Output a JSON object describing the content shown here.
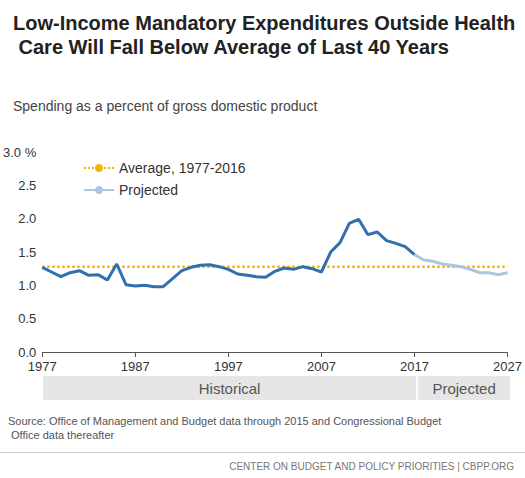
{
  "chart_data": {
    "type": "line",
    "title": "Low-Income Mandatory Expenditures Outside Health Care Will Fall Below Average of Last 40 Years",
    "subtitle": "Spending as a percent of gross domestic product",
    "x": [
      1977,
      1978,
      1979,
      1980,
      1981,
      1982,
      1983,
      1984,
      1985,
      1986,
      1987,
      1988,
      1989,
      1990,
      1991,
      1992,
      1993,
      1994,
      1995,
      1996,
      1997,
      1998,
      1999,
      2000,
      2001,
      2002,
      2003,
      2004,
      2005,
      2006,
      2007,
      2008,
      2009,
      2010,
      2011,
      2012,
      2013,
      2014,
      2015,
      2016,
      2017,
      2018,
      2019,
      2020,
      2021,
      2022,
      2023,
      2024,
      2025,
      2026,
      2027
    ],
    "series": [
      {
        "color": "#2f70ad",
        "line_style": "solid",
        "values": [
          1.27,
          1.2,
          1.13,
          1.19,
          1.22,
          1.15,
          1.16,
          1.08,
          1.32,
          1.01,
          0.99,
          1.0,
          0.98,
          0.98,
          1.1,
          1.22,
          1.27,
          1.3,
          1.31,
          1.28,
          1.24,
          1.17,
          1.15,
          1.13,
          1.12,
          1.21,
          1.26,
          1.24,
          1.28,
          1.25,
          1.2,
          1.5,
          1.64,
          1.93,
          1.99,
          1.76,
          1.8,
          1.67,
          1.63,
          1.58,
          1.46,
          null,
          null,
          null,
          null,
          null,
          null,
          null,
          null,
          null,
          null
        ]
      },
      {
        "name": "Projected",
        "color": "#a9c6e2",
        "line_style": "solid",
        "values": [
          null,
          null,
          null,
          null,
          null,
          null,
          null,
          null,
          null,
          null,
          null,
          null,
          null,
          null,
          null,
          null,
          null,
          null,
          null,
          null,
          null,
          null,
          null,
          null,
          null,
          null,
          null,
          null,
          null,
          null,
          null,
          null,
          null,
          null,
          null,
          null,
          null,
          null,
          null,
          null,
          1.46,
          1.38,
          1.36,
          1.32,
          1.3,
          1.28,
          1.24,
          1.19,
          1.19,
          1.16,
          1.19
        ]
      },
      {
        "name": "Average, 1977-2016",
        "color": "#f5b400",
        "line_style": "dotted",
        "values": [
          1.28,
          1.28,
          1.28,
          1.28,
          1.28,
          1.28,
          1.28,
          1.28,
          1.28,
          1.28,
          1.28,
          1.28,
          1.28,
          1.28,
          1.28,
          1.28,
          1.28,
          1.28,
          1.28,
          1.28,
          1.28,
          1.28,
          1.28,
          1.28,
          1.28,
          1.28,
          1.28,
          1.28,
          1.28,
          1.28,
          1.28,
          1.28,
          1.28,
          1.28,
          1.28,
          1.28,
          1.28,
          1.28,
          1.28,
          1.28,
          1.28,
          1.28,
          1.28,
          1.28,
          1.28,
          1.28,
          1.28,
          1.28,
          1.28,
          1.28,
          1.28
        ]
      }
    ],
    "xlim": [
      1977,
      2027
    ],
    "xticks": [
      1977,
      1987,
      1997,
      2007,
      2017,
      2027
    ],
    "ylim": [
      0,
      3
    ],
    "yticks": [
      {
        "value": 0,
        "label": "0.0"
      },
      {
        "value": 0.5,
        "label": "0.5"
      },
      {
        "value": 1,
        "label": "1.0"
      },
      {
        "value": 1.5,
        "label": "1.5"
      },
      {
        "value": 2,
        "label": "2.0"
      },
      {
        "value": 2.5,
        "label": "2.5"
      },
      {
        "value": 3,
        "label": "3.0 %"
      }
    ],
    "grid": false,
    "legend": "top-left",
    "periods": [
      {
        "label": "Historical",
        "x": [
          1977,
          2017
        ]
      },
      {
        "label": "Projected",
        "x": [
          2017,
          2027
        ]
      }
    ],
    "source": "Source: Office of Management and Budget data through 2015 and Congressional Budget Office data thereafter",
    "footer": "CENTER ON BUDGET AND POLICY PRIORITIES | CBPP.ORG"
  }
}
